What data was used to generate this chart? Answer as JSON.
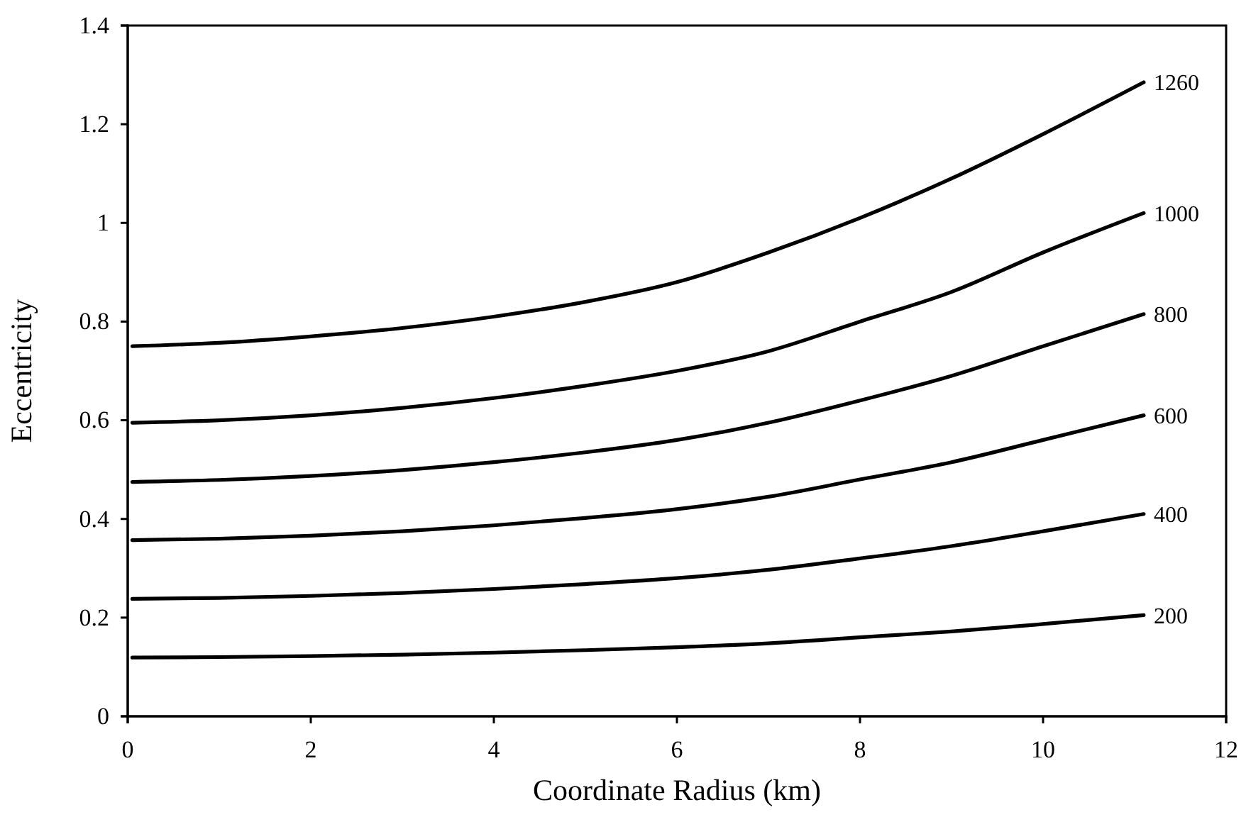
{
  "chart_data": {
    "type": "line",
    "xlabel": "Coordinate Radius (km)",
    "ylabel": "Eccentricity",
    "x": [
      0.05,
      1,
      2,
      3,
      4,
      5,
      6,
      7,
      8,
      9,
      10,
      11.1
    ],
    "xlim": [
      0,
      12
    ],
    "xticks": [
      0,
      2,
      4,
      6,
      8,
      10,
      12
    ],
    "ylim": [
      0,
      1.4
    ],
    "yticks": [
      0,
      0.2,
      0.4,
      0.6,
      0.8,
      1,
      1.2,
      1.4
    ],
    "grid": false,
    "legend": false,
    "marker": "none",
    "line_style": "solid",
    "series": [
      {
        "name": "1260",
        "color": "#000000",
        "values": [
          0.75,
          0.757,
          0.77,
          0.787,
          0.81,
          0.84,
          0.88,
          0.94,
          1.01,
          1.09,
          1.18,
          1.285
        ]
      },
      {
        "name": "1000",
        "color": "#000000",
        "values": [
          0.595,
          0.6,
          0.61,
          0.625,
          0.645,
          0.67,
          0.7,
          0.74,
          0.8,
          0.86,
          0.94,
          1.02
        ]
      },
      {
        "name": "800",
        "color": "#000000",
        "values": [
          0.475,
          0.479,
          0.487,
          0.499,
          0.515,
          0.535,
          0.56,
          0.595,
          0.64,
          0.69,
          0.75,
          0.815
        ]
      },
      {
        "name": "600",
        "color": "#000000",
        "values": [
          0.357,
          0.36,
          0.366,
          0.375,
          0.387,
          0.402,
          0.42,
          0.445,
          0.48,
          0.515,
          0.56,
          0.61
        ]
      },
      {
        "name": "400",
        "color": "#000000",
        "values": [
          0.238,
          0.24,
          0.244,
          0.25,
          0.258,
          0.268,
          0.28,
          0.297,
          0.32,
          0.345,
          0.375,
          0.41
        ]
      },
      {
        "name": "200",
        "color": "#000000",
        "values": [
          0.119,
          0.12,
          0.122,
          0.125,
          0.129,
          0.134,
          0.14,
          0.148,
          0.16,
          0.172,
          0.187,
          0.205
        ]
      }
    ]
  }
}
